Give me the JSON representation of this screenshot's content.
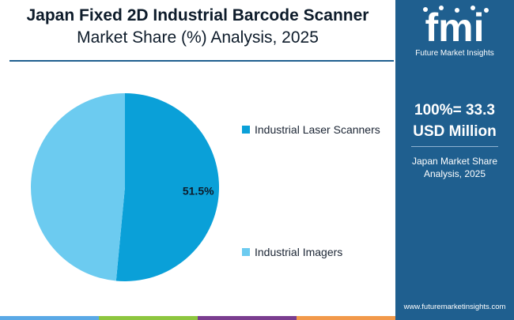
{
  "title": {
    "line1": "Japan Fixed 2D Industrial Barcode Scanner",
    "line2": "Market Share (%) Analysis, 2025"
  },
  "chart_data": {
    "type": "pie",
    "categories": [
      "Industrial Laser Scanners",
      "Industrial Imagers"
    ],
    "values": [
      51.5,
      48.5
    ],
    "colors": [
      "#0aa0d8",
      "#6ccbf0"
    ],
    "data_labels": [
      "51.5%",
      ""
    ],
    "legend_position": "right"
  },
  "panel": {
    "brand_mark": "fmi",
    "brand_name": "Future Market Insights",
    "total_line1": "100%= 33.3",
    "total_line2": "USD Million",
    "sub_line1": "Japan Market Share",
    "sub_line2": "Analysis, 2025",
    "url": "www.futuremarketinsights.com"
  },
  "colors": {
    "panel_bg": "#1f5f8f",
    "bottom_bar": [
      "#5aa9e6",
      "#8dc63f",
      "#7a3d8f",
      "#f2994a"
    ]
  }
}
